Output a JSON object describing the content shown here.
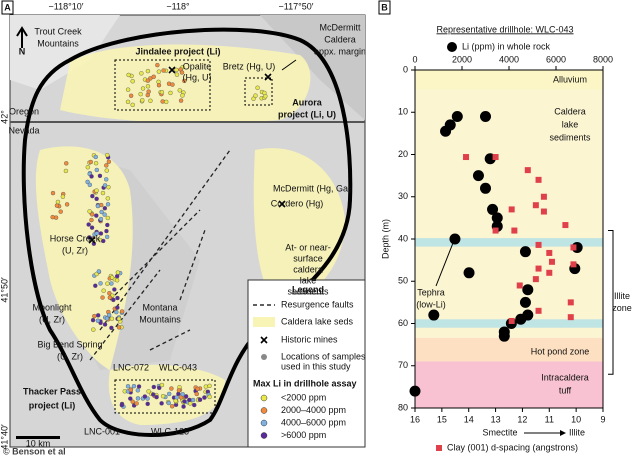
{
  "panel_a": {
    "label": "A",
    "north": "N",
    "lon_ticks": [
      "−118°10′",
      "−118°",
      "−117°50′"
    ],
    "lat_ticks": [
      "42°",
      "41°50′",
      "41°40′"
    ],
    "places": [
      [
        "Trout Creek",
        "Mountains"
      ],
      [
        "McDermitt",
        "Caldera",
        "appx. margin"
      ],
      [
        "Jindalee project (Li)"
      ],
      [
        "Opalite",
        "(Hg, U)"
      ],
      [
        "Bretz (Hg, U)"
      ],
      [
        "Aurora",
        "project (Li, U)"
      ],
      [
        "Oregon"
      ],
      [
        "Nevada"
      ],
      [
        "McDermitt (Hg, Ga)"
      ],
      [
        "Cordero (Hg)"
      ],
      [
        "At- or near-",
        "surface",
        "caldera",
        "lake",
        "sediments"
      ],
      [
        "Horse Creek",
        "(U, Zr)"
      ],
      [
        "Moonlight",
        "(U, Zr)"
      ],
      [
        "Montana",
        "Mountains"
      ],
      [
        "Big Bend Spring",
        "(U, Zr)"
      ],
      [
        "LNC-072"
      ],
      [
        "WLC-043"
      ],
      [
        "Thacker Pass",
        "project (Li)"
      ],
      [
        "LNC-001"
      ],
      [
        "WLC-125"
      ]
    ],
    "legend": {
      "title": "Legend",
      "items": [
        [
          "Resurgence faults"
        ],
        [
          "Caldera lake seds"
        ],
        [
          "Historic mines"
        ],
        [
          "Locations of samples",
          "used in this study"
        ]
      ],
      "class_title": "Max Li in drillhole assay",
      "classes": [
        {
          "label": "<2000 ppm",
          "color": "#e8e84a"
        },
        {
          "label": "2000–4000 ppm",
          "color": "#f08a3c"
        },
        {
          "label": "4000–6000 ppm",
          "color": "#7fb2e0"
        },
        {
          "label": ">6000 ppm",
          "color": "#5a2a9a"
        }
      ]
    },
    "scale": "10 km",
    "credit": "© Benson et al"
  },
  "chart_data": {
    "type": "scatter",
    "label": "B",
    "title": "Representative drillhole: WLC-043",
    "y_label": "Depth (m)",
    "ylim": [
      0,
      80
    ],
    "y_reversed": true,
    "yticks": [
      0,
      10,
      20,
      30,
      40,
      50,
      60,
      70,
      80
    ],
    "xlim": [
      0,
      8000
    ],
    "xticks": [
      0,
      2000,
      4000,
      6000,
      8000
    ],
    "x2lim": [
      16,
      9
    ],
    "x2ticks": [
      16,
      15,
      14,
      13,
      12,
      11,
      10,
      9
    ],
    "x2_label_left": "Smectite",
    "x2_label_right": "Illite",
    "zones": [
      {
        "name": [
          "Alluvium"
        ],
        "range": [
          0,
          4.7
        ],
        "color": "#fcf6c6"
      },
      {
        "name": [
          "Caldera",
          "lake",
          "sediments"
        ],
        "range": [
          4.7,
          63.4
        ],
        "color": "#fbf5d2"
      },
      {
        "name": [
          "Hot pond zone"
        ],
        "range": [
          63.4,
          69
        ],
        "color": "#fde0c2"
      },
      {
        "name": [
          "Intracaldera",
          "tuff"
        ],
        "range": [
          69,
          80
        ],
        "color": "#f8c2d2"
      }
    ],
    "bands": [
      [
        39.8,
        41.8
      ],
      [
        59,
        61
      ]
    ],
    "band_color": "#bfe4e4",
    "illite_zone": {
      "label": [
        "Illite",
        "zone"
      ],
      "range": [
        38,
        72
      ]
    },
    "tephra": [
      "Tephra",
      "(low-Li)"
    ],
    "series": [
      {
        "name": "Li (ppm) in whole rock",
        "color": "#000000",
        "marker": "circle",
        "axis": "x",
        "x": [
          1800,
          1500,
          1300,
          3000,
          3200,
          2700,
          3000,
          3300,
          3500,
          3500,
          1700,
          4700,
          6900,
          6800,
          2300,
          4800,
          4700,
          4800,
          800,
          4500,
          4100,
          3800,
          3800,
          0
        ],
        "y": [
          11,
          13,
          14.5,
          11,
          21,
          25,
          28,
          33,
          35,
          37,
          40,
          43,
          42,
          47,
          48,
          52,
          55,
          58,
          58,
          59,
          60,
          62,
          63,
          76
        ]
      },
      {
        "name": "Clay (001) d-spacing (angstrons)",
        "color": "#e0404a",
        "marker": "square",
        "axis": "x2",
        "x": [
          13.0,
          14.1,
          11.8,
          11.4,
          11.2,
          11.5,
          12.4,
          11.2,
          10.4,
          13.0,
          12.3,
          11.4,
          10.1,
          11.0,
          10.9,
          10.1,
          11.4,
          11.0,
          11.5,
          12.1,
          10.2,
          11.4,
          10.2,
          12.4
        ],
        "y": [
          20.6,
          20.6,
          23.7,
          26,
          30,
          32,
          33,
          33.5,
          36.7,
          38,
          38,
          41.4,
          42,
          43.3,
          45.4,
          46,
          47,
          48,
          49.5,
          51,
          55,
          57,
          58.5,
          59.4
        ]
      }
    ]
  }
}
